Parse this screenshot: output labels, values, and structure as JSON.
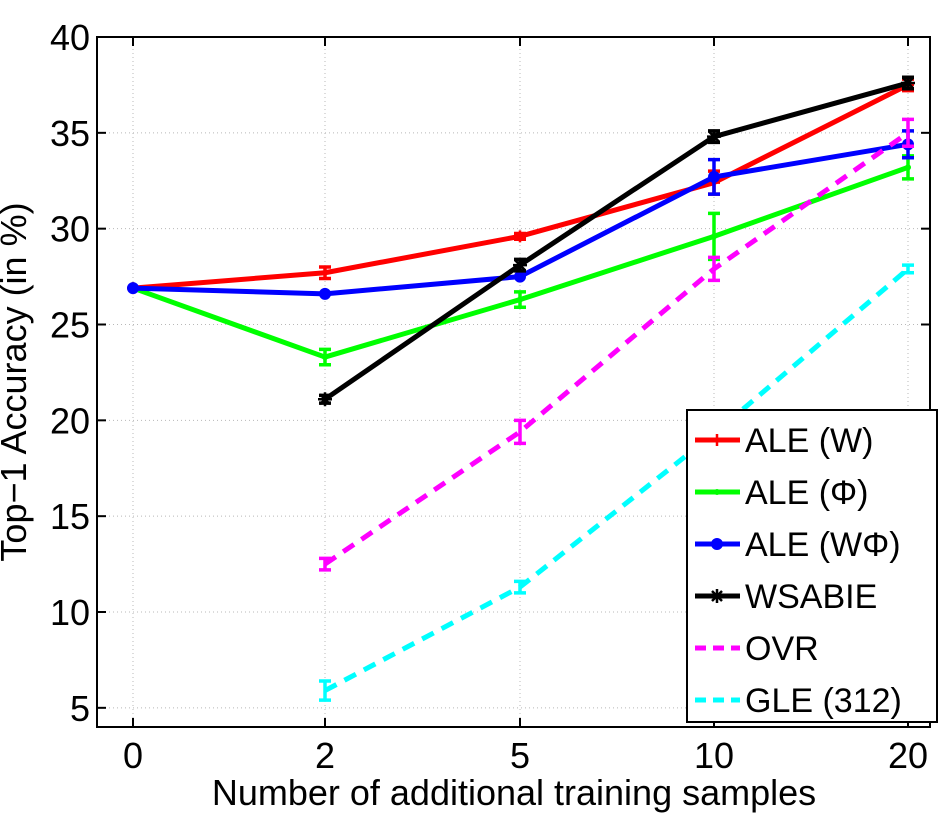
{
  "chart_data": {
    "type": "line",
    "xlabel": "Number of additional training samples",
    "ylabel": "Top−1 Accuracy (in %)",
    "categories": [
      "0",
      "2",
      "5",
      "10",
      "20"
    ],
    "ylim": [
      4,
      40
    ],
    "yticks": [
      5,
      10,
      15,
      20,
      25,
      30,
      35,
      40
    ],
    "grid": true,
    "legend_position": "bottom-right",
    "series": [
      {
        "name": "ALE (W)",
        "color": "#ff0000",
        "dash": "solid",
        "marker": "plus",
        "values": [
          26.9,
          27.7,
          29.6,
          32.4,
          37.5
        ],
        "err": [
          0,
          0.3,
          0.15,
          0.6,
          0.3
        ]
      },
      {
        "name": "ALE (Φ)",
        "color": "#00ff00",
        "dash": "solid",
        "marker": "point",
        "values": [
          26.9,
          23.3,
          26.3,
          29.6,
          33.2
        ],
        "err": [
          0,
          0.4,
          0.4,
          1.2,
          0.6
        ]
      },
      {
        "name": "ALE (WΦ)",
        "color": "#0000ff",
        "dash": "solid",
        "marker": "circle",
        "values": [
          26.9,
          26.6,
          27.5,
          32.7,
          34.4
        ],
        "err": [
          0,
          0,
          0,
          0.9,
          0.7
        ]
      },
      {
        "name": "WSABIE",
        "color": "#000000",
        "dash": "solid",
        "marker": "star",
        "values": [
          null,
          21.1,
          28.1,
          34.8,
          37.6
        ],
        "err": [
          0,
          0.2,
          0.3,
          0.3,
          0.3
        ]
      },
      {
        "name": "OVR",
        "color": "#ff00ff",
        "dash": "dashed",
        "marker": "none",
        "values": [
          null,
          12.5,
          19.4,
          27.9,
          35.0
        ],
        "err": [
          0,
          0.3,
          0.6,
          0.6,
          0.7
        ]
      },
      {
        "name": "GLE (312)",
        "color": "#00ffff",
        "dash": "dashed",
        "marker": "none",
        "values": [
          null,
          5.9,
          11.3,
          19.3,
          27.9
        ],
        "err": [
          0,
          0.5,
          0.3,
          0.3,
          0.2
        ]
      }
    ]
  }
}
